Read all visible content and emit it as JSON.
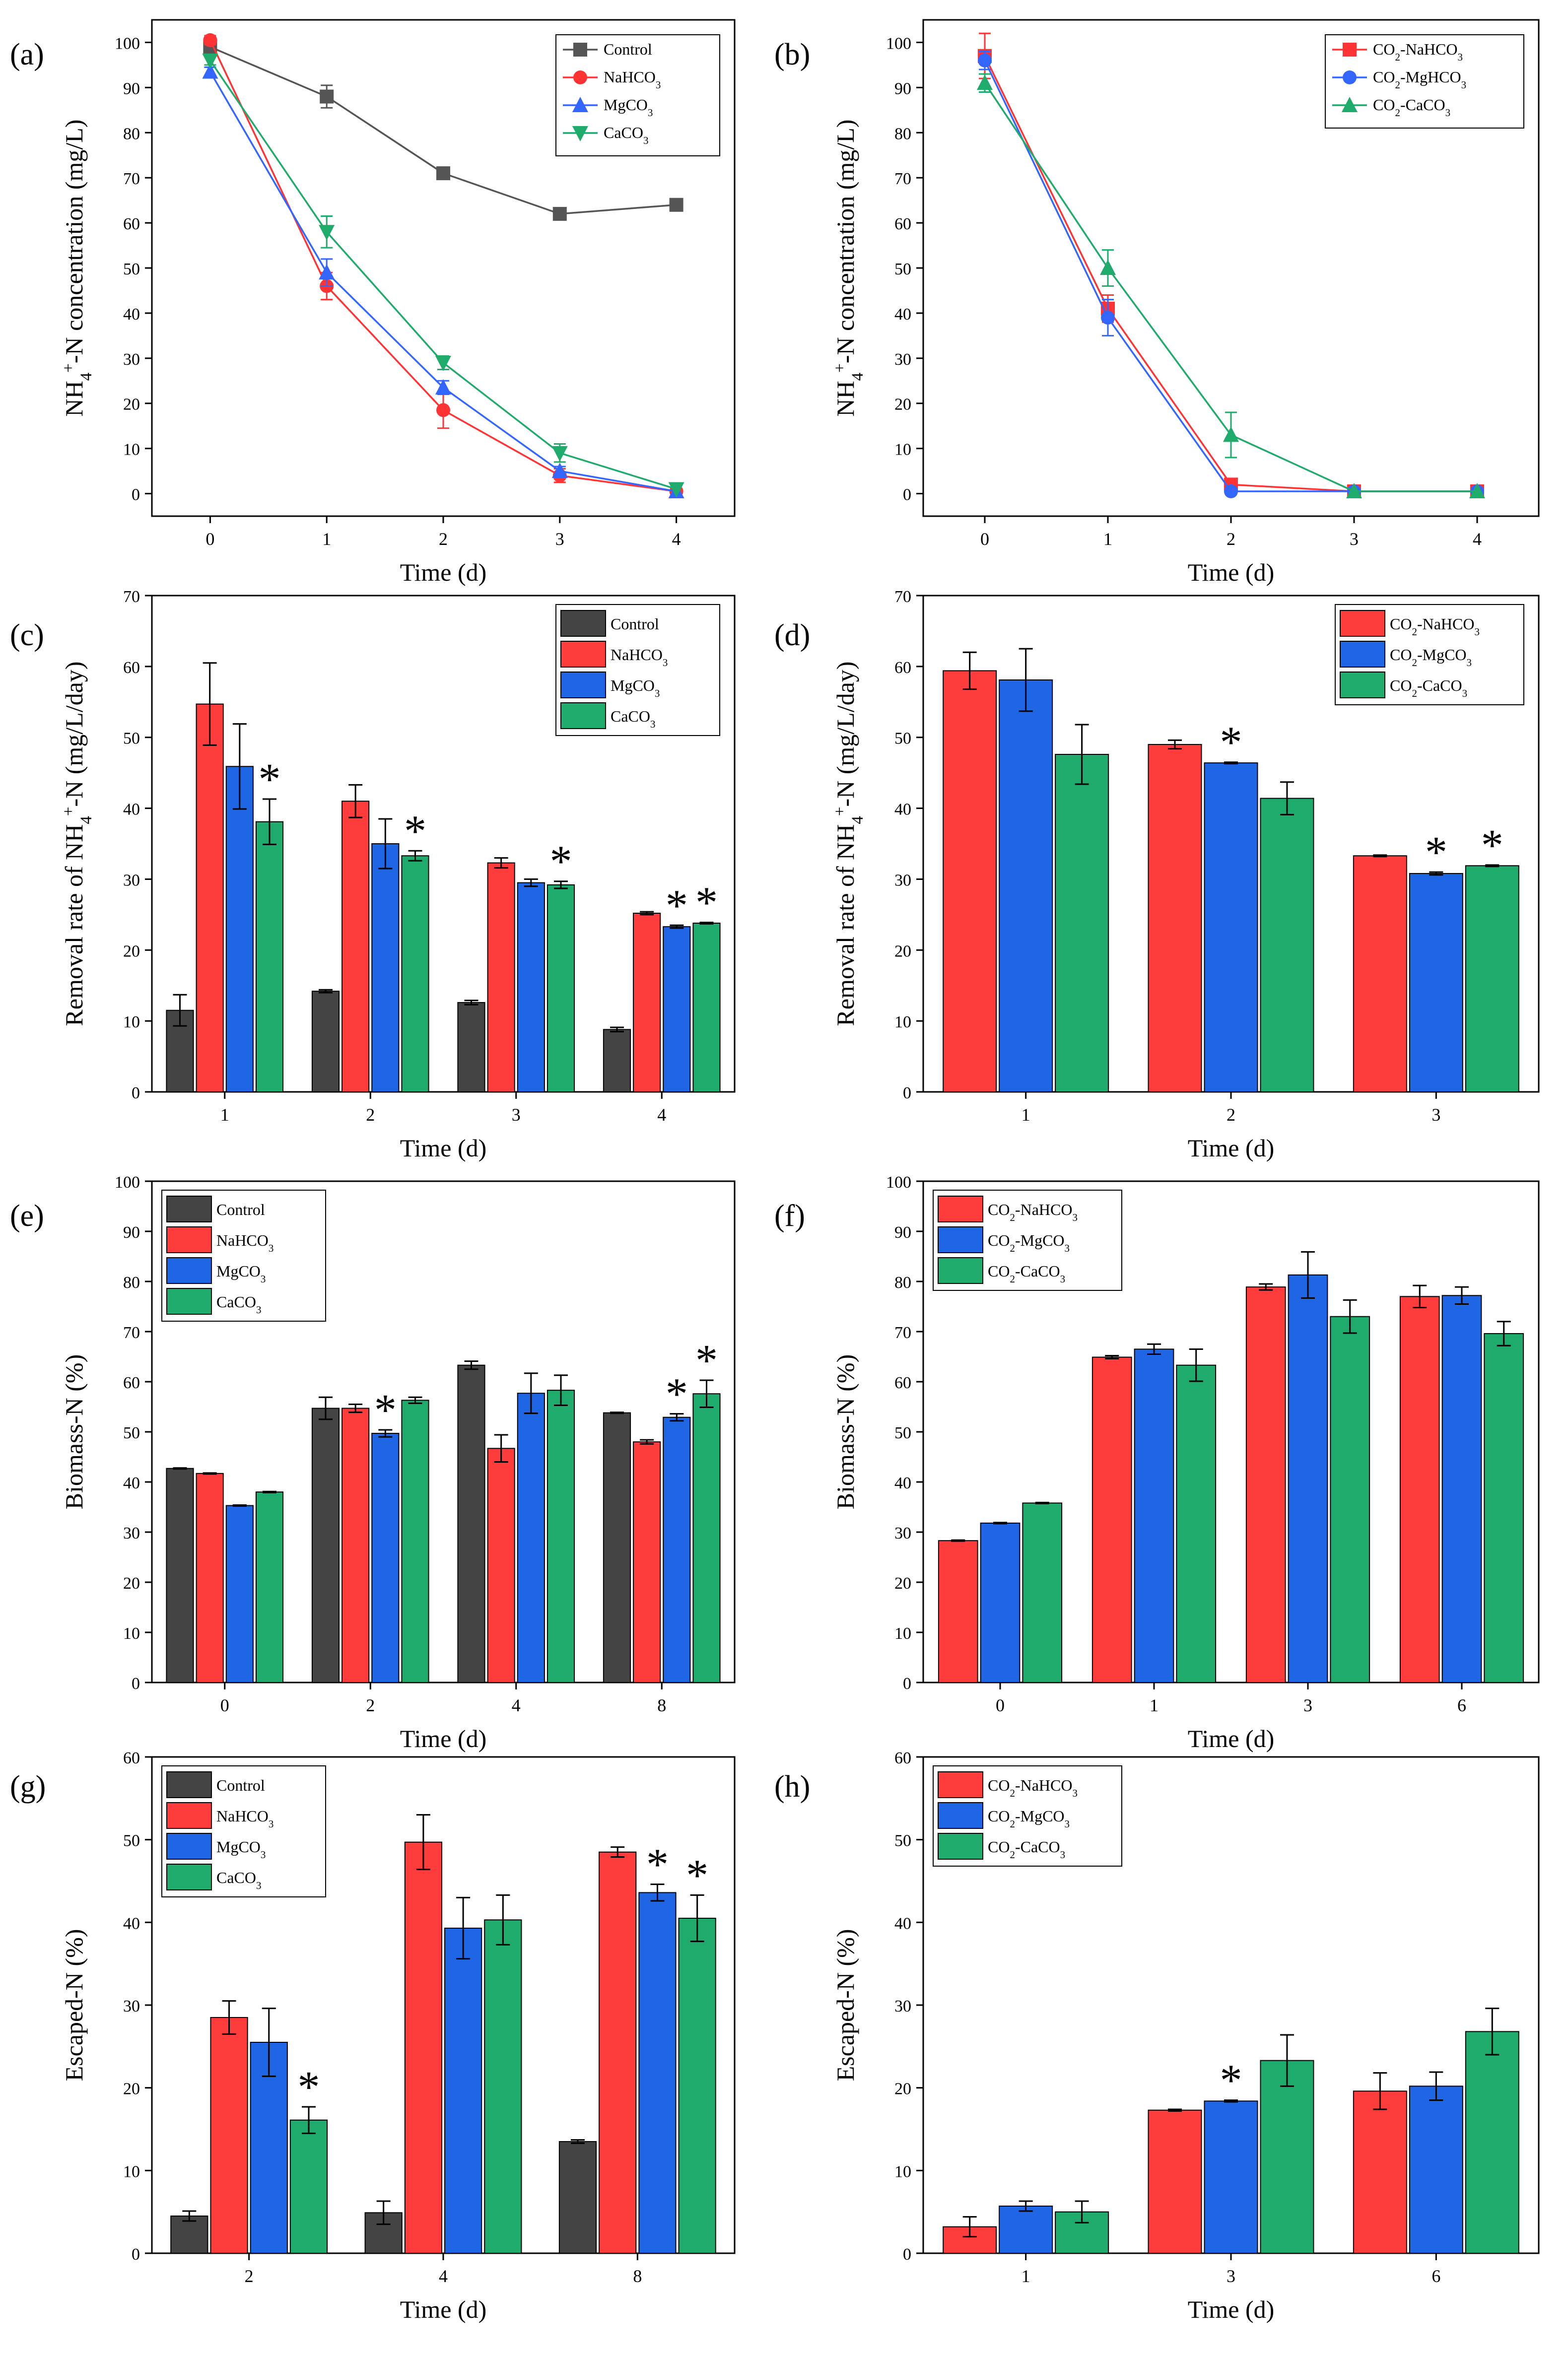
{
  "chart_data": [
    {
      "panel": "(a)",
      "type": "line",
      "title": "",
      "xlabel": "Time (d)",
      "ylabel_parts": [
        "NH",
        "4",
        "+",
        "-N concentration (mg/L)"
      ],
      "x": [
        0,
        1,
        2,
        3,
        4
      ],
      "xticks": [
        "0",
        "1",
        "2",
        "3",
        "4"
      ],
      "xlim": [
        -0.5,
        4.5
      ],
      "ylim": [
        -5,
        105
      ],
      "yticks": [
        0,
        10,
        20,
        30,
        40,
        50,
        60,
        70,
        80,
        90,
        100
      ],
      "legend_position": "top-right",
      "series": [
        {
          "name": "Control",
          "legend": [
            "Control"
          ],
          "color": "#555555",
          "marker": "square",
          "values": [
            99,
            88,
            71,
            62,
            64
          ],
          "errors": [
            1.5,
            2.5,
            1,
            1,
            1
          ]
        },
        {
          "name": "NaHCO3",
          "legend": [
            "NaHCO",
            "3",
            ""
          ],
          "color": "#ff3333",
          "marker": "circle",
          "values": [
            100.5,
            46,
            18.5,
            4,
            0.5
          ],
          "errors": [
            1,
            3,
            4,
            1.5,
            0.3
          ]
        },
        {
          "name": "MgCO3",
          "legend": [
            "MgCO",
            "3",
            ""
          ],
          "color": "#3366ff",
          "marker": "triangle-up",
          "values": [
            93.5,
            49,
            23.5,
            5,
            0.5
          ],
          "errors": [
            1,
            3,
            1.5,
            1,
            0.3
          ]
        },
        {
          "name": "CaCO3",
          "legend": [
            "CaCO",
            "3",
            ""
          ],
          "color": "#1fab6b",
          "marker": "triangle-down",
          "values": [
            96,
            58,
            29,
            9,
            1
          ],
          "errors": [
            1,
            3.5,
            1.5,
            2,
            0.3
          ]
        }
      ]
    },
    {
      "panel": "(b)",
      "type": "line",
      "title": "",
      "xlabel": "Time (d)",
      "ylabel_parts": [
        "NH",
        "4",
        "+",
        "-N concentration (mg/L)"
      ],
      "x": [
        0,
        1,
        2,
        3,
        4
      ],
      "xticks": [
        "0",
        "1",
        "2",
        "3",
        "4"
      ],
      "xlim": [
        -0.5,
        4.5
      ],
      "ylim": [
        -5,
        105
      ],
      "yticks": [
        0,
        10,
        20,
        30,
        40,
        50,
        60,
        70,
        80,
        90,
        100
      ],
      "legend_position": "top-right",
      "series": [
        {
          "name": "CO2-NaHCO3",
          "legend": [
            "CO",
            "2",
            "-NaHCO",
            "3"
          ],
          "color": "#ff3333",
          "marker": "square",
          "values": [
            97,
            41,
            2,
            0.5,
            0.5
          ],
          "errors": [
            5,
            3,
            0.5,
            0.3,
            0.3
          ]
        },
        {
          "name": "CO2-MgHCO3",
          "legend": [
            "CO",
            "2",
            "-MgHCO",
            "3"
          ],
          "color": "#3366ff",
          "marker": "circle",
          "values": [
            96,
            39,
            0.5,
            0.5,
            0.5
          ],
          "errors": [
            2,
            4,
            0.3,
            0.3,
            0.3
          ]
        },
        {
          "name": "CO2-CaCO3",
          "legend": [
            "CO",
            "2",
            "-CaCO",
            "3"
          ],
          "color": "#1fab6b",
          "marker": "triangle-up",
          "values": [
            91,
            50,
            13,
            0.5,
            0.5
          ],
          "errors": [
            2,
            4,
            5,
            0.3,
            0.3
          ]
        }
      ]
    },
    {
      "panel": "(c)",
      "type": "bar",
      "xlabel": "Time (d)",
      "ylabel_parts": [
        "Removal rate of NH",
        "4",
        "+",
        "-N (mg/L/day)"
      ],
      "categories": [
        "1",
        "2",
        "3",
        "4"
      ],
      "ylim": [
        0,
        70
      ],
      "yticks": [
        0,
        10,
        20,
        30,
        40,
        50,
        60,
        70
      ],
      "legend_position": "top-right",
      "series": [
        {
          "name": "Control",
          "legend": [
            "Control",
            "",
            ""
          ],
          "color": "#444444",
          "values": [
            11.5,
            14.2,
            12.6,
            8.8
          ],
          "errors": [
            2.2,
            0.2,
            0.3,
            0.3
          ]
        },
        {
          "name": "NaHCO3",
          "legend": [
            "NaHCO",
            "3",
            ""
          ],
          "color": "#ff3c3c",
          "values": [
            54.7,
            41,
            32.3,
            25.2
          ],
          "errors": [
            5.8,
            2.3,
            0.7,
            0.2
          ]
        },
        {
          "name": "MgCO3",
          "legend": [
            "MgCO",
            "3",
            ""
          ],
          "color": "#1f66e5",
          "values": [
            45.9,
            35,
            29.5,
            23.3
          ],
          "errors": [
            6,
            3.5,
            0.5,
            0.2
          ]
        },
        {
          "name": "CaCO3",
          "legend": [
            "CaCO",
            "3",
            ""
          ],
          "color": "#1fab6b",
          "values": [
            38.1,
            33.3,
            29.2,
            23.8
          ],
          "errors": [
            3.2,
            0.7,
            0.5,
            0.1
          ]
        }
      ],
      "asterisks": [
        {
          "category": 0,
          "series": 3,
          "label": "*"
        },
        {
          "category": 1,
          "series": 3,
          "label": "*"
        },
        {
          "category": 2,
          "series": 3,
          "label": "*"
        },
        {
          "category": 3,
          "series": 2,
          "label": "*"
        },
        {
          "category": 3,
          "series": 3,
          "label": "*"
        }
      ]
    },
    {
      "panel": "(d)",
      "type": "bar",
      "xlabel": "Time (d)",
      "ylabel_parts": [
        "Removal rate of NH",
        "4",
        "+",
        "-N (mg/L/day)"
      ],
      "categories": [
        "1",
        "2",
        "3"
      ],
      "ylim": [
        0,
        70
      ],
      "yticks": [
        0,
        10,
        20,
        30,
        40,
        50,
        60,
        70
      ],
      "legend_position": "top-right",
      "series": [
        {
          "name": "CO2-NaHCO3",
          "legend": [
            "CO",
            "2",
            "-NaHCO",
            "3"
          ],
          "color": "#ff3c3c",
          "values": [
            59.4,
            49,
            33.3
          ],
          "errors": [
            2.6,
            0.6,
            0.1
          ]
        },
        {
          "name": "CO2-MgCO3",
          "legend": [
            "CO",
            "2",
            "-MgCO",
            "3"
          ],
          "color": "#1f66e5",
          "values": [
            58.1,
            46.4,
            30.8
          ],
          "errors": [
            4.4,
            0.1,
            0.2
          ]
        },
        {
          "name": "CO2-CaCO3",
          "legend": [
            "CO",
            "2",
            "-CaCO",
            "3"
          ],
          "color": "#1fab6b",
          "values": [
            47.6,
            41.4,
            31.9
          ],
          "errors": [
            4.2,
            2.3,
            0.1
          ]
        }
      ],
      "asterisks": [
        {
          "category": 1,
          "series": 1,
          "label": "*"
        },
        {
          "category": 2,
          "series": 1,
          "label": "*"
        },
        {
          "category": 2,
          "series": 2,
          "label": "*"
        }
      ]
    },
    {
      "panel": "(e)",
      "type": "bar",
      "xlabel": "Time (d)",
      "ylabel_parts": [
        "Biomass-N (%)",
        "",
        "",
        ""
      ],
      "categories": [
        "0",
        "2",
        "4",
        "8"
      ],
      "ylim": [
        0,
        100
      ],
      "yticks": [
        0,
        10,
        20,
        30,
        40,
        50,
        60,
        70,
        80,
        90,
        100
      ],
      "legend_position": "top-left",
      "series": [
        {
          "name": "Control",
          "legend": [
            "Control",
            "",
            ""
          ],
          "color": "#444444",
          "values": [
            42.7,
            54.7,
            63.3,
            53.8
          ],
          "errors": [
            0.1,
            2.2,
            0.8,
            0.1
          ]
        },
        {
          "name": "NaHCO3",
          "legend": [
            "NaHCO",
            "3",
            ""
          ],
          "color": "#ff3c3c",
          "values": [
            41.7,
            54.7,
            46.7,
            48
          ],
          "errors": [
            0.1,
            0.8,
            2.7,
            0.4
          ]
        },
        {
          "name": "MgCO3",
          "legend": [
            "MgCO",
            "3",
            ""
          ],
          "color": "#1f66e5",
          "values": [
            35.3,
            49.7,
            57.7,
            52.9
          ],
          "errors": [
            0.1,
            0.7,
            4,
            0.7
          ]
        },
        {
          "name": "CaCO3",
          "legend": [
            "CaCO",
            "3",
            ""
          ],
          "color": "#1fab6b",
          "values": [
            38,
            56.3,
            58.3,
            57.6
          ],
          "errors": [
            0.1,
            0.6,
            3,
            2.7
          ]
        }
      ],
      "asterisks": [
        {
          "category": 1,
          "series": 2,
          "label": "*"
        },
        {
          "category": 3,
          "series": 2,
          "label": "*"
        },
        {
          "category": 3,
          "series": 3,
          "label": "*"
        }
      ]
    },
    {
      "panel": "(f)",
      "type": "bar",
      "xlabel": "Time (d)",
      "ylabel_parts": [
        "Biomass-N (%)",
        "",
        "",
        ""
      ],
      "categories": [
        "0",
        "1",
        "3",
        "6"
      ],
      "ylim": [
        0,
        100
      ],
      "yticks": [
        0,
        10,
        20,
        30,
        40,
        50,
        60,
        70,
        80,
        90,
        100
      ],
      "legend_position": "top-left",
      "series": [
        {
          "name": "CO2-NaHCO3",
          "legend": [
            "CO",
            "2",
            "-NaHCO",
            "3"
          ],
          "color": "#ff3c3c",
          "values": [
            28.3,
            64.9,
            78.9,
            77
          ],
          "errors": [
            0.1,
            0.3,
            0.6,
            2.2
          ]
        },
        {
          "name": "CO2-MgCO3",
          "legend": [
            "CO",
            "2",
            "-MgCO",
            "3"
          ],
          "color": "#1f66e5",
          "values": [
            31.8,
            66.5,
            81.3,
            77.2
          ],
          "errors": [
            0.1,
            1,
            4.6,
            1.7
          ]
        },
        {
          "name": "CO2-CaCO3",
          "legend": [
            "CO",
            "2",
            "-CaCO",
            "3"
          ],
          "color": "#1fab6b",
          "values": [
            35.8,
            63.3,
            73,
            69.6
          ],
          "errors": [
            0.1,
            3.2,
            3.3,
            2.4
          ]
        }
      ],
      "asterisks": []
    },
    {
      "panel": "(g)",
      "type": "bar",
      "xlabel": "Time (d)",
      "ylabel_parts": [
        "Escaped-N (%)",
        "",
        "",
        ""
      ],
      "categories": [
        "2",
        "4",
        "8"
      ],
      "ylim": [
        0,
        60
      ],
      "yticks": [
        0,
        10,
        20,
        30,
        40,
        50,
        60
      ],
      "legend_position": "top-left",
      "series": [
        {
          "name": "Control",
          "legend": [
            "Control",
            "",
            ""
          ],
          "color": "#444444",
          "values": [
            4.5,
            4.9,
            13.5
          ],
          "errors": [
            0.6,
            1.4,
            0.2
          ]
        },
        {
          "name": "NaHCO3",
          "legend": [
            "NaHCO",
            "3",
            ""
          ],
          "color": "#ff3c3c",
          "values": [
            28.5,
            49.7,
            48.5
          ],
          "errors": [
            2,
            3.3,
            0.6
          ]
        },
        {
          "name": "MgCO3",
          "legend": [
            "MgCO",
            "3",
            ""
          ],
          "color": "#1f66e5",
          "values": [
            25.5,
            39.3,
            43.6
          ],
          "errors": [
            4.1,
            3.7,
            1
          ]
        },
        {
          "name": "CaCO3",
          "legend": [
            "CaCO",
            "3",
            ""
          ],
          "color": "#1fab6b",
          "values": [
            16.1,
            40.3,
            40.5
          ],
          "errors": [
            1.6,
            3,
            2.8
          ]
        }
      ],
      "asterisks": [
        {
          "category": 0,
          "series": 3,
          "label": "*"
        },
        {
          "category": 2,
          "series": 2,
          "label": "*"
        },
        {
          "category": 2,
          "series": 3,
          "label": "*"
        }
      ]
    },
    {
      "panel": "(h)",
      "type": "bar",
      "xlabel": "Time (d)",
      "ylabel_parts": [
        "Escaped-N (%)",
        "",
        "",
        ""
      ],
      "categories": [
        "1",
        "3",
        "6"
      ],
      "ylim": [
        0,
        60
      ],
      "yticks": [
        0,
        10,
        20,
        30,
        40,
        50,
        60
      ],
      "legend_position": "top-left",
      "series": [
        {
          "name": "CO2-NaHCO3",
          "legend": [
            "CO",
            "2",
            "-NaHCO",
            "3"
          ],
          "color": "#ff3c3c",
          "values": [
            3.2,
            17.3,
            19.6
          ],
          "errors": [
            1.2,
            0.1,
            2.2
          ]
        },
        {
          "name": "CO2-MgCO3",
          "legend": [
            "CO",
            "2",
            "-MgCO",
            "3"
          ],
          "color": "#1f66e5",
          "values": [
            5.7,
            18.4,
            20.2
          ],
          "errors": [
            0.6,
            0.1,
            1.7
          ]
        },
        {
          "name": "CO2-CaCO3",
          "legend": [
            "CO",
            "2",
            "-CaCO",
            "3"
          ],
          "color": "#1fab6b",
          "values": [
            5,
            23.3,
            26.8
          ],
          "errors": [
            1.3,
            3.1,
            2.8
          ]
        }
      ],
      "asterisks": [
        {
          "category": 1,
          "series": 1,
          "label": "*"
        }
      ]
    }
  ]
}
